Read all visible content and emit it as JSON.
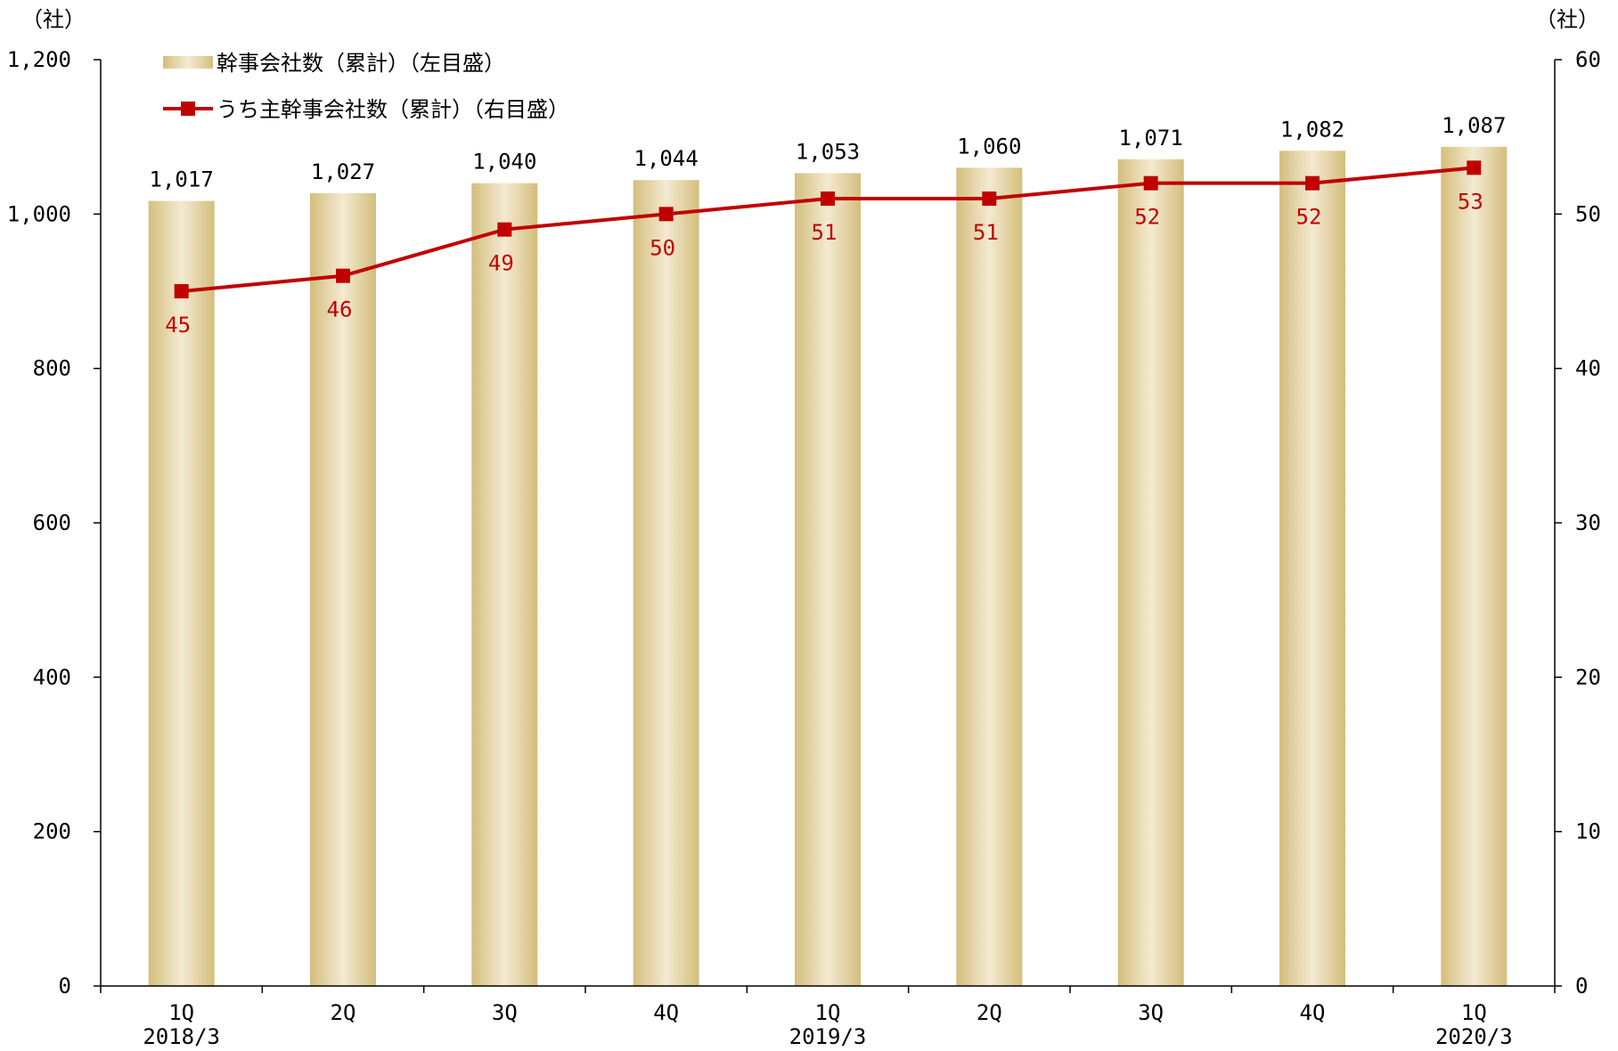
{
  "colors": {
    "bar_dark": "#d4be7c",
    "bar_light": "#f4ead2",
    "line": "#c00000",
    "axis": "#000000"
  },
  "chart_data": {
    "type": "bar",
    "categories": [
      {
        "quarter": "1Q",
        "year": "2018/3"
      },
      {
        "quarter": "2Q",
        "year": ""
      },
      {
        "quarter": "3Q",
        "year": ""
      },
      {
        "quarter": "4Q",
        "year": ""
      },
      {
        "quarter": "1Q",
        "year": "2019/3"
      },
      {
        "quarter": "2Q",
        "year": ""
      },
      {
        "quarter": "3Q",
        "year": ""
      },
      {
        "quarter": "4Q",
        "year": ""
      },
      {
        "quarter": "1Q",
        "year": "2020/3"
      }
    ],
    "series": [
      {
        "name": "幹事会社数（累計）（左目盛）",
        "type": "bar",
        "axis": "left",
        "values": [
          1017,
          1027,
          1040,
          1044,
          1053,
          1060,
          1071,
          1082,
          1087
        ],
        "labels": [
          "1,017",
          "1,027",
          "1,040",
          "1,044",
          "1,053",
          "1,060",
          "1,071",
          "1,082",
          "1,087"
        ]
      },
      {
        "name": "うち主幹事会社数（累計）（右目盛）",
        "type": "line",
        "axis": "right",
        "values": [
          45,
          46,
          49,
          50,
          51,
          51,
          52,
          52,
          53
        ],
        "labels": [
          "45",
          "46",
          "49",
          "50",
          "51",
          "51",
          "52",
          "52",
          "53"
        ]
      }
    ],
    "left_axis": {
      "unit": "（社）",
      "range": [
        0,
        1200
      ],
      "ticks": [
        0,
        200,
        400,
        600,
        800,
        1000,
        1200
      ],
      "tick_labels": [
        "0",
        "200",
        "400",
        "600",
        "800",
        "1,000",
        "1,200"
      ]
    },
    "right_axis": {
      "unit": "（社）",
      "range": [
        0,
        60
      ],
      "ticks": [
        0,
        10,
        20,
        30,
        40,
        50,
        60
      ],
      "tick_labels": [
        "0",
        "10",
        "20",
        "30",
        "40",
        "50",
        "60"
      ]
    },
    "grid": false,
    "legend_position": "top-left"
  }
}
